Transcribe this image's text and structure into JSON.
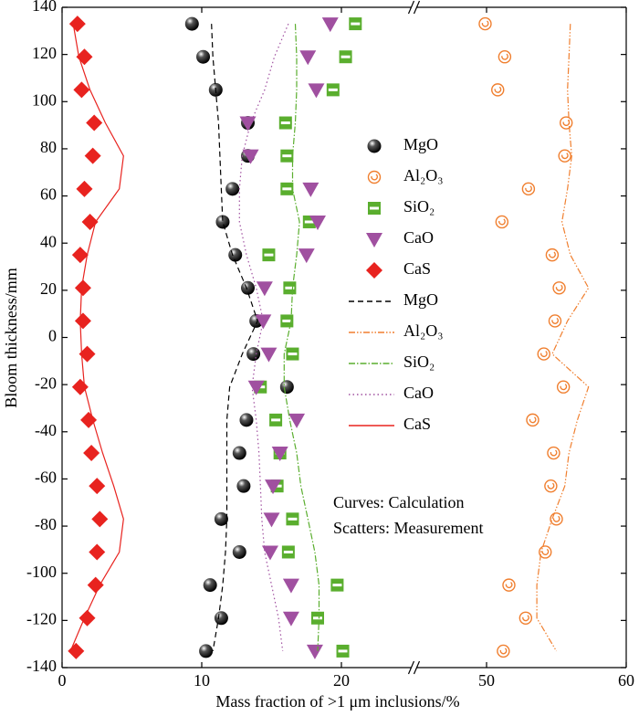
{
  "chart_data": {
    "type": "scatter",
    "x_label": "Mass fraction of >1 μm inclusions/%",
    "y_label": "Bloom thickness/mm",
    "annotations": [
      "Curves: Calculation",
      "Scatters: Measurement"
    ],
    "xlim": [
      0,
      60
    ],
    "xbreak": [
      25,
      45
    ],
    "xticks": [
      0,
      10,
      20,
      50,
      60
    ],
    "ylim": [
      -140,
      140
    ],
    "yticks": [
      -140,
      -120,
      -100,
      -80,
      -60,
      -40,
      -20,
      0,
      20,
      40,
      60,
      80,
      100,
      120,
      140
    ],
    "y": [
      133,
      119,
      105,
      91,
      77,
      63,
      49,
      35,
      21,
      7,
      -7,
      -21,
      -35,
      -49,
      -63,
      -77,
      -91,
      -105,
      -119,
      -133
    ],
    "series": [
      {
        "name": "MgO",
        "kind": "scatter",
        "marker": "sphere",
        "color": "#000000",
        "values": [
          9.3,
          10.1,
          11.0,
          13.3,
          13.3,
          12.2,
          11.5,
          12.4,
          13.3,
          13.9,
          13.7,
          16.1,
          13.2,
          12.7,
          13.0,
          11.4,
          12.7,
          10.6,
          11.4,
          10.3
        ]
      },
      {
        "name": "Al₂O₃",
        "kind": "scatter",
        "marker": "ring",
        "color": "#f07f2f",
        "values": [
          49.9,
          51.3,
          50.8,
          55.7,
          55.6,
          53.0,
          51.1,
          54.7,
          55.2,
          54.9,
          54.1,
          55.5,
          53.3,
          54.8,
          54.6,
          55.0,
          54.2,
          51.6,
          52.8,
          51.2
        ]
      },
      {
        "name": "SiO₂",
        "kind": "scatter",
        "marker": "square",
        "color": "#5aae2e",
        "values": [
          21.0,
          20.3,
          19.4,
          16.0,
          16.1,
          16.1,
          17.7,
          14.8,
          16.3,
          16.1,
          16.5,
          14.2,
          15.3,
          15.6,
          15.4,
          16.5,
          16.2,
          19.7,
          18.3,
          20.1
        ]
      },
      {
        "name": "CaO",
        "kind": "scatter",
        "marker": "triangle",
        "color": "#a050a0",
        "values": [
          19.2,
          17.6,
          18.2,
          13.3,
          13.5,
          17.8,
          18.3,
          17.5,
          14.5,
          14.4,
          14.8,
          13.9,
          16.8,
          15.6,
          15.1,
          15.0,
          14.9,
          16.4,
          16.4,
          18.1
        ]
      },
      {
        "name": "CaS",
        "kind": "scatter",
        "marker": "diamond",
        "color": "#e8231f",
        "values": [
          1.1,
          1.6,
          1.4,
          2.3,
          2.2,
          1.6,
          2.0,
          1.3,
          1.5,
          1.5,
          1.8,
          1.3,
          1.9,
          2.1,
          2.5,
          2.7,
          2.5,
          2.4,
          1.8,
          1.0
        ]
      },
      {
        "name": "MgO",
        "kind": "line",
        "dash": "6 4",
        "color": "#000000",
        "values": [
          10.7,
          10.8,
          11.0,
          11.2,
          11.3,
          11.4,
          11.5,
          12.2,
          13.2,
          14.0,
          12.9,
          12.0,
          11.8,
          11.8,
          11.8,
          11.8,
          11.7,
          11.5,
          11.2,
          10.8
        ]
      },
      {
        "name": "Al₂O₃",
        "kind": "line",
        "dash": "7 2 1.5 2 1.5 2",
        "color": "#f07f2f",
        "values": [
          56.0,
          55.9,
          55.8,
          55.9,
          56.1,
          55.8,
          55.4,
          56.0,
          57.3,
          55.8,
          54.7,
          57.3,
          56.5,
          55.9,
          55.6,
          54.7,
          53.9,
          53.6,
          53.6,
          55.0
        ]
      },
      {
        "name": "SiO₂",
        "kind": "line",
        "dash": "7 2 1.5 2",
        "color": "#5aae2e",
        "values": [
          16.7,
          16.8,
          16.8,
          16.7,
          16.5,
          16.5,
          17.0,
          16.8,
          16.5,
          16.4,
          15.9,
          15.9,
          16.3,
          16.8,
          17.1,
          17.6,
          18.1,
          18.4,
          18.4,
          18.3
        ]
      },
      {
        "name": "CaO",
        "kind": "line",
        "dash": "1.5 3",
        "color": "#a050a0",
        "values": [
          16.2,
          15.2,
          14.5,
          13.5,
          12.9,
          12.7,
          12.7,
          13.2,
          13.9,
          14.4,
          13.9,
          13.6,
          13.9,
          14.1,
          14.2,
          14.3,
          14.5,
          15.0,
          15.5,
          15.8
        ]
      },
      {
        "name": "CaS",
        "kind": "line",
        "dash": "none",
        "color": "#e8231f",
        "values": [
          0.8,
          1.2,
          2.0,
          3.1,
          4.4,
          4.1,
          2.4,
          1.8,
          1.4,
          1.3,
          1.4,
          1.6,
          2.2,
          2.9,
          3.7,
          4.4,
          4.1,
          2.7,
          1.6,
          0.6
        ]
      }
    ]
  }
}
